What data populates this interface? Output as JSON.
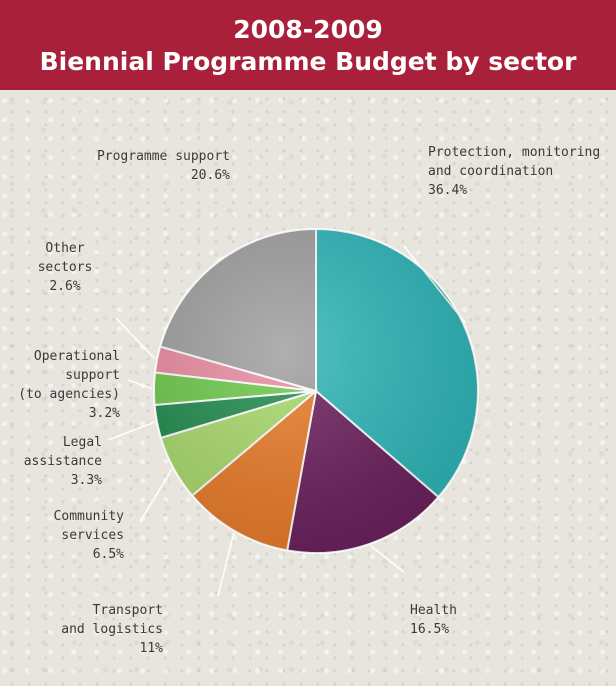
{
  "header": {
    "title_line1": "2008-2009",
    "title_line2": "Biennial Programme Budget by sector"
  },
  "chart_data": {
    "type": "pie",
    "title": "2008-2009 Biennial Programme Budget by sector",
    "unit": "%",
    "slices": [
      {
        "label_lines": [
          "Protection, monitoring",
          "and coordination"
        ],
        "value_text": "36.4%",
        "value": 36.4,
        "color": "#2db5b8"
      },
      {
        "label_lines": [
          "Health"
        ],
        "value_text": "16.5%",
        "value": 16.5,
        "color": "#6a1f5c"
      },
      {
        "label_lines": [
          "Transport",
          "and logistics"
        ],
        "value_text": "11%",
        "value": 11,
        "color": "#e87a28"
      },
      {
        "label_lines": [
          "Community",
          "services"
        ],
        "value_text": "6.5%",
        "value": 6.5,
        "color": "#a8d86a"
      },
      {
        "label_lines": [
          "Legal",
          "assistance"
        ],
        "value_text": "3.3%",
        "value": 3.3,
        "color": "#1f8a4c"
      },
      {
        "label_lines": [
          "Operational",
          "support",
          "(to agencies)"
        ],
        "value_text": "3.2%",
        "value": 3.2,
        "color": "#6cc84a"
      },
      {
        "label_lines": [
          "Other",
          "sectors"
        ],
        "value_text": "2.6%",
        "value": 2.6,
        "color": "#e98aa0"
      },
      {
        "label_lines": [
          "Programme support"
        ],
        "value_text": "20.6%",
        "value": 20.6,
        "color": "#9e9e9e"
      }
    ]
  }
}
